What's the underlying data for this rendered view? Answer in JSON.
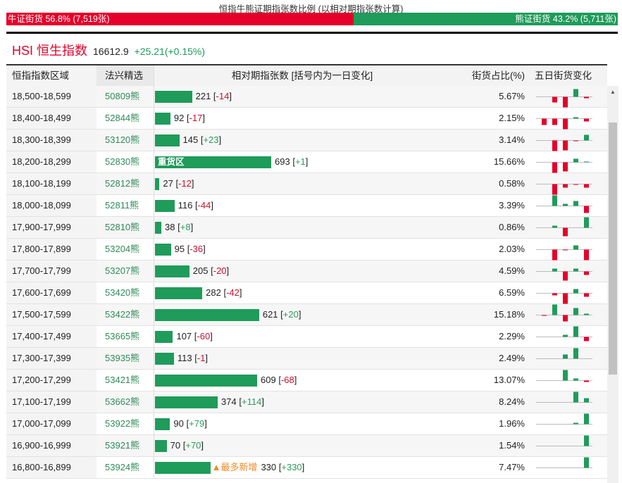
{
  "title": "恒指牛熊证期指张数比例 (以相对期指张数计算)",
  "bull_label": "牛证街货 56.8% (7,519张)",
  "bull_pct": 56.8,
  "bear_label": "熊证街货 43.2% (5,711张)",
  "hsi": {
    "name": "HSI 恒生指数",
    "price": "16612.9",
    "change": "+25.21(+0.15%)"
  },
  "headers": [
    "恒指指数区域",
    "法兴精选",
    "相对期指张数 [括号内为一日变化]",
    "街货占比(%)",
    "五日街货变化"
  ],
  "colors": {
    "red": "#e4002b",
    "green": "#1f9b5a"
  },
  "rows": [
    {
      "range": "18,500-18,599",
      "code": "50809熊",
      "count": 221,
      "count_text": "221",
      "change": "-14",
      "share": "5.67%",
      "five": [
        0,
        -8,
        -15,
        11,
        -2
      ]
    },
    {
      "range": "18,400-18,499",
      "code": "52844熊",
      "count": 92,
      "count_text": "92",
      "change": "-17",
      "share": "2.15%",
      "five": [
        -9,
        -9,
        -15,
        2,
        -4
      ]
    },
    {
      "range": "18,300-18,399",
      "code": "53120熊",
      "count": 145,
      "count_text": "145",
      "change": "+23",
      "share": "3.14%",
      "five": [
        0,
        -15,
        -14,
        -1,
        8
      ]
    },
    {
      "range": "18,200-18,299",
      "code": "52830熊",
      "count": 693,
      "count_text": "693",
      "change": "+1",
      "share": "15.66%",
      "tag": "重货区",
      "tag_inside": true,
      "five": [
        0,
        -15,
        -13,
        5,
        1
      ]
    },
    {
      "range": "18,100-18,199",
      "code": "52812熊",
      "count": 27,
      "count_text": "27",
      "change": "-12",
      "share": "0.58%",
      "five": [
        0,
        -15,
        -5,
        -1,
        -5
      ]
    },
    {
      "range": "18,000-18,099",
      "code": "52811熊",
      "count": 116,
      "count_text": "116",
      "change": "-44",
      "share": "3.39%",
      "five": [
        0,
        15,
        3,
        7,
        -10
      ]
    },
    {
      "range": "17,900-17,999",
      "code": "52810熊",
      "count": 38,
      "count_text": "38",
      "change": "+8",
      "share": "0.86%",
      "five": [
        0,
        3,
        -12,
        0,
        15
      ]
    },
    {
      "range": "17,800-17,899",
      "code": "53204熊",
      "count": 95,
      "count_text": "95",
      "change": "-36",
      "share": "2.03%",
      "five": [
        0,
        -15,
        -1,
        6,
        -15
      ]
    },
    {
      "range": "17,700-17,799",
      "code": "53207熊",
      "count": 205,
      "count_text": "205",
      "change": "-20",
      "share": "4.59%",
      "five": [
        0,
        4,
        -13,
        4,
        -5
      ]
    },
    {
      "range": "17,600-17,699",
      "code": "53420熊",
      "count": 282,
      "count_text": "282",
      "change": "-42",
      "share": "6.59%",
      "five": [
        0,
        -3,
        -15,
        6,
        -5
      ]
    },
    {
      "range": "17,500-17,599",
      "code": "53422熊",
      "count": 621,
      "count_text": "621",
      "change": "+20",
      "share": "15.18%",
      "five": [
        -1,
        15,
        -9,
        10,
        2
      ]
    },
    {
      "range": "17,400-17,499",
      "code": "53665熊",
      "count": 107,
      "count_text": "107",
      "change": "-60",
      "share": "2.29%",
      "five": [
        0,
        0,
        3,
        15,
        -6
      ]
    },
    {
      "range": "17,300-17,399",
      "code": "53935熊",
      "count": 113,
      "count_text": "113",
      "change": "-1",
      "share": "2.49%",
      "five": [
        0,
        0,
        6,
        15,
        0
      ]
    },
    {
      "range": "17,200-17,299",
      "code": "53421熊",
      "count": 609,
      "count_text": "609",
      "change": "-68",
      "share": "13.07%",
      "five": [
        0,
        0,
        15,
        3,
        -2
      ]
    },
    {
      "range": "17,100-17,199",
      "code": "53662熊",
      "count": 374,
      "count_text": "374",
      "change": "+114",
      "share": "8.24%",
      "five": [
        0,
        0,
        0,
        15,
        6
      ]
    },
    {
      "range": "17,000-17,099",
      "code": "53922熊",
      "count": 90,
      "count_text": "90",
      "change": "+79",
      "share": "1.96%",
      "five": [
        0,
        0,
        0,
        2,
        15
      ]
    },
    {
      "range": "16,900-16,999",
      "code": "53921熊",
      "count": 70,
      "count_text": "70",
      "change": "+70",
      "share": "1.54%",
      "five": [
        0,
        0,
        0,
        0,
        15
      ]
    },
    {
      "range": "16,800-16,899",
      "code": "53924熊",
      "count": 330,
      "count_text": "330",
      "change": "+330",
      "share": "7.47%",
      "tag": "▲最多新增",
      "tag_inside": false,
      "five": [
        0,
        0,
        0,
        0,
        15
      ]
    }
  ]
}
